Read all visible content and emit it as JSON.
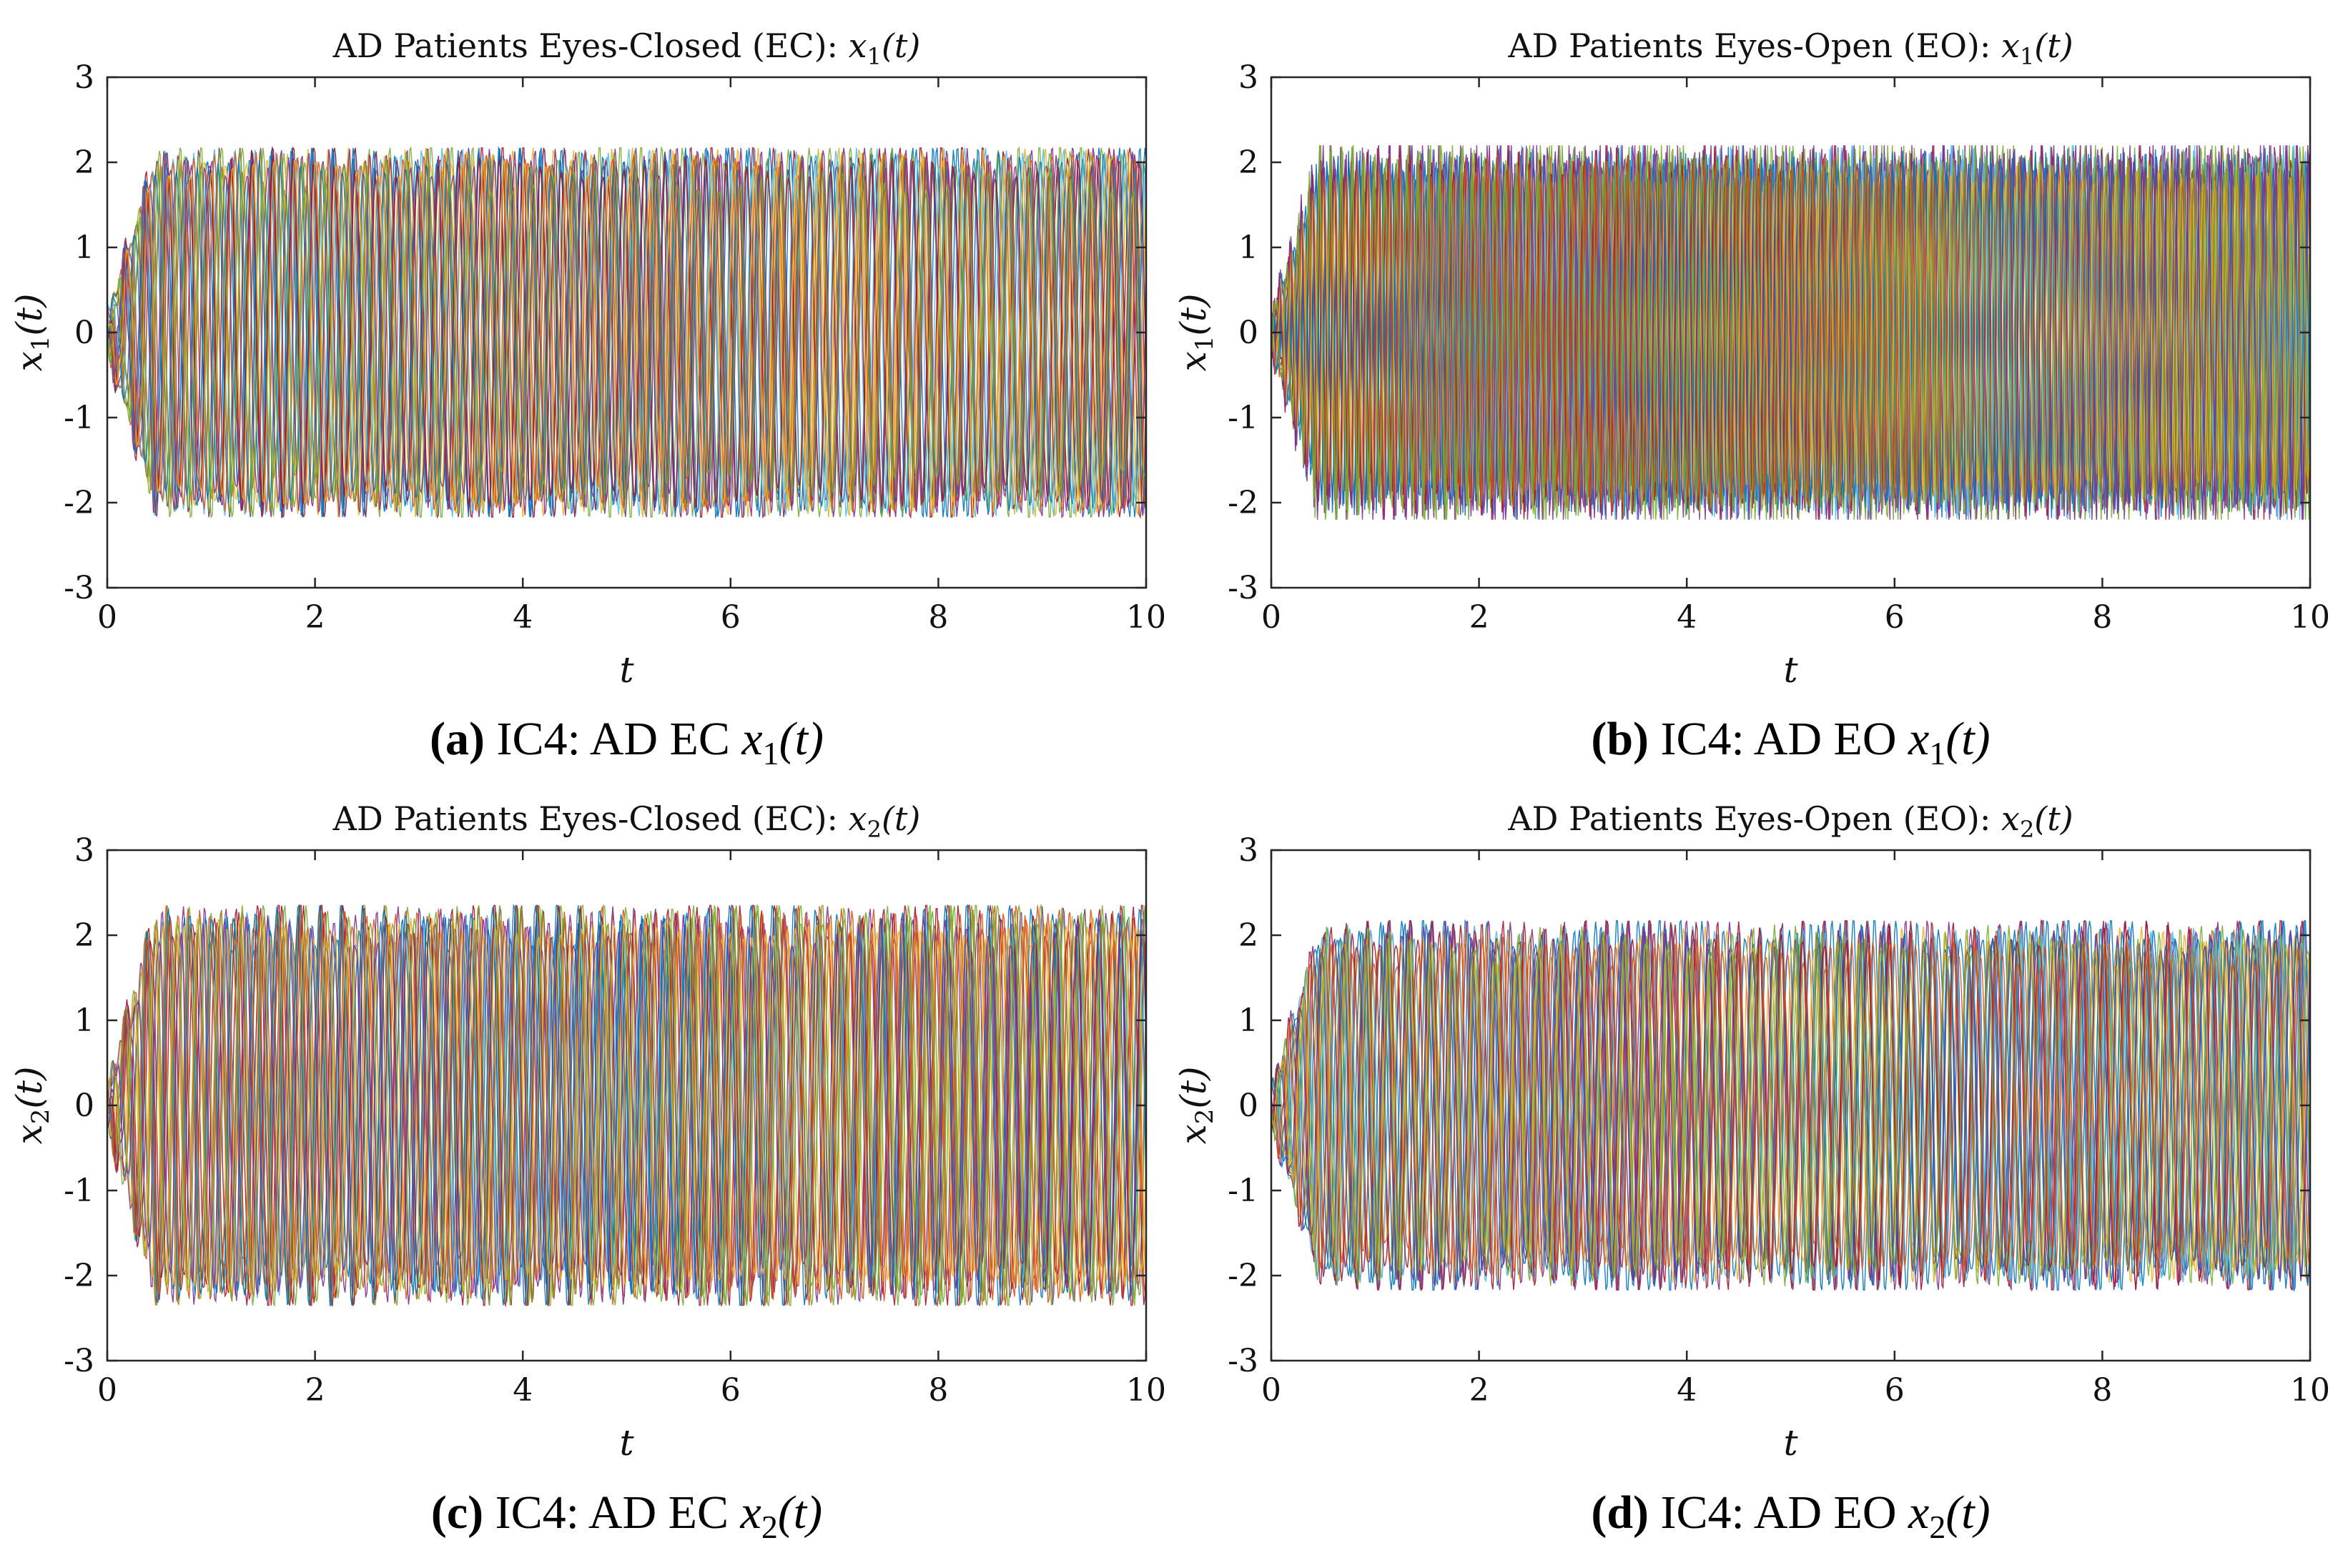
{
  "line_colors": [
    "#0072BD",
    "#D95319",
    "#EDB120",
    "#7E2F8E",
    "#77AC30",
    "#4DBEEE",
    "#A2142F"
  ],
  "chart_data": [
    {
      "type": "line",
      "id": "a",
      "title": "AD Patients Eyes-Closed (EC): ",
      "title_math": "x",
      "title_sub": "1",
      "title_arg": "(t)",
      "xlabel": "t",
      "ylabel": "x",
      "ylabel_sub": "1",
      "ylabel_arg": "(t)",
      "xlim": [
        0,
        10
      ],
      "ylim": [
        -3,
        3
      ],
      "xticks": [
        "0",
        "2",
        "4",
        "6",
        "8",
        "10"
      ],
      "yticks": [
        "3",
        "2",
        "1",
        "0",
        "-1",
        "-2",
        "-3"
      ],
      "series_count": 19,
      "amplitude": 2.17,
      "cycles": 50,
      "caption_tag": "(a)",
      "caption_text": " IC4: AD EC ",
      "caption_math": "x",
      "caption_sub": "1",
      "caption_arg": "(t)"
    },
    {
      "type": "line",
      "id": "b",
      "title": "AD Patients Eyes-Open (EO): ",
      "title_math": "x",
      "title_sub": "1",
      "title_arg": "(t)",
      "xlabel": "t",
      "ylabel": "x",
      "ylabel_sub": "1",
      "ylabel_arg": "(t)",
      "xlim": [
        0,
        10
      ],
      "ylim": [
        -3,
        3
      ],
      "xticks": [
        "0",
        "2",
        "4",
        "6",
        "8",
        "10"
      ],
      "yticks": [
        "3",
        "2",
        "1",
        "0",
        "-1",
        "-2",
        "-3"
      ],
      "series_count": 19,
      "amplitude": 2.2,
      "cycles": 95,
      "caption_tag": "(b)",
      "caption_text": " IC4: AD EO ",
      "caption_math": "x",
      "caption_sub": "1",
      "caption_arg": "(t)"
    },
    {
      "type": "line",
      "id": "c",
      "title": "AD Patients Eyes-Closed (EC): ",
      "title_math": "x",
      "title_sub": "2",
      "title_arg": "(t)",
      "xlabel": "t",
      "ylabel": "x",
      "ylabel_sub": "2",
      "ylabel_arg": "(t)",
      "xlim": [
        0,
        10
      ],
      "ylim": [
        -3,
        3
      ],
      "xticks": [
        "0",
        "2",
        "4",
        "6",
        "8",
        "10"
      ],
      "yticks": [
        "3",
        "2",
        "1",
        "0",
        "-1",
        "-2",
        "-3"
      ],
      "series_count": 19,
      "amplitude": 2.35,
      "cycles": 48,
      "caption_tag": "(c)",
      "caption_text": " IC4: AD EC ",
      "caption_math": "x",
      "caption_sub": "2",
      "caption_arg": "(t)"
    },
    {
      "type": "line",
      "id": "d",
      "title": "AD Patients Eyes-Open (EO): ",
      "title_math": "x",
      "title_sub": "2",
      "title_arg": "(t)",
      "xlabel": "t",
      "ylabel": "x",
      "ylabel_sub": "2",
      "ylabel_arg": "(t)",
      "xlim": [
        0,
        10
      ],
      "ylim": [
        -3,
        3
      ],
      "xticks": [
        "0",
        "2",
        "4",
        "6",
        "8",
        "10"
      ],
      "yticks": [
        "3",
        "2",
        "1",
        "0",
        "-1",
        "-2",
        "-3"
      ],
      "series_count": 19,
      "amplitude": 2.17,
      "cycles": 48,
      "caption_tag": "(d)",
      "caption_text": " IC4: AD EO ",
      "caption_math": "x",
      "caption_sub": "2",
      "caption_arg": "(t)"
    }
  ]
}
